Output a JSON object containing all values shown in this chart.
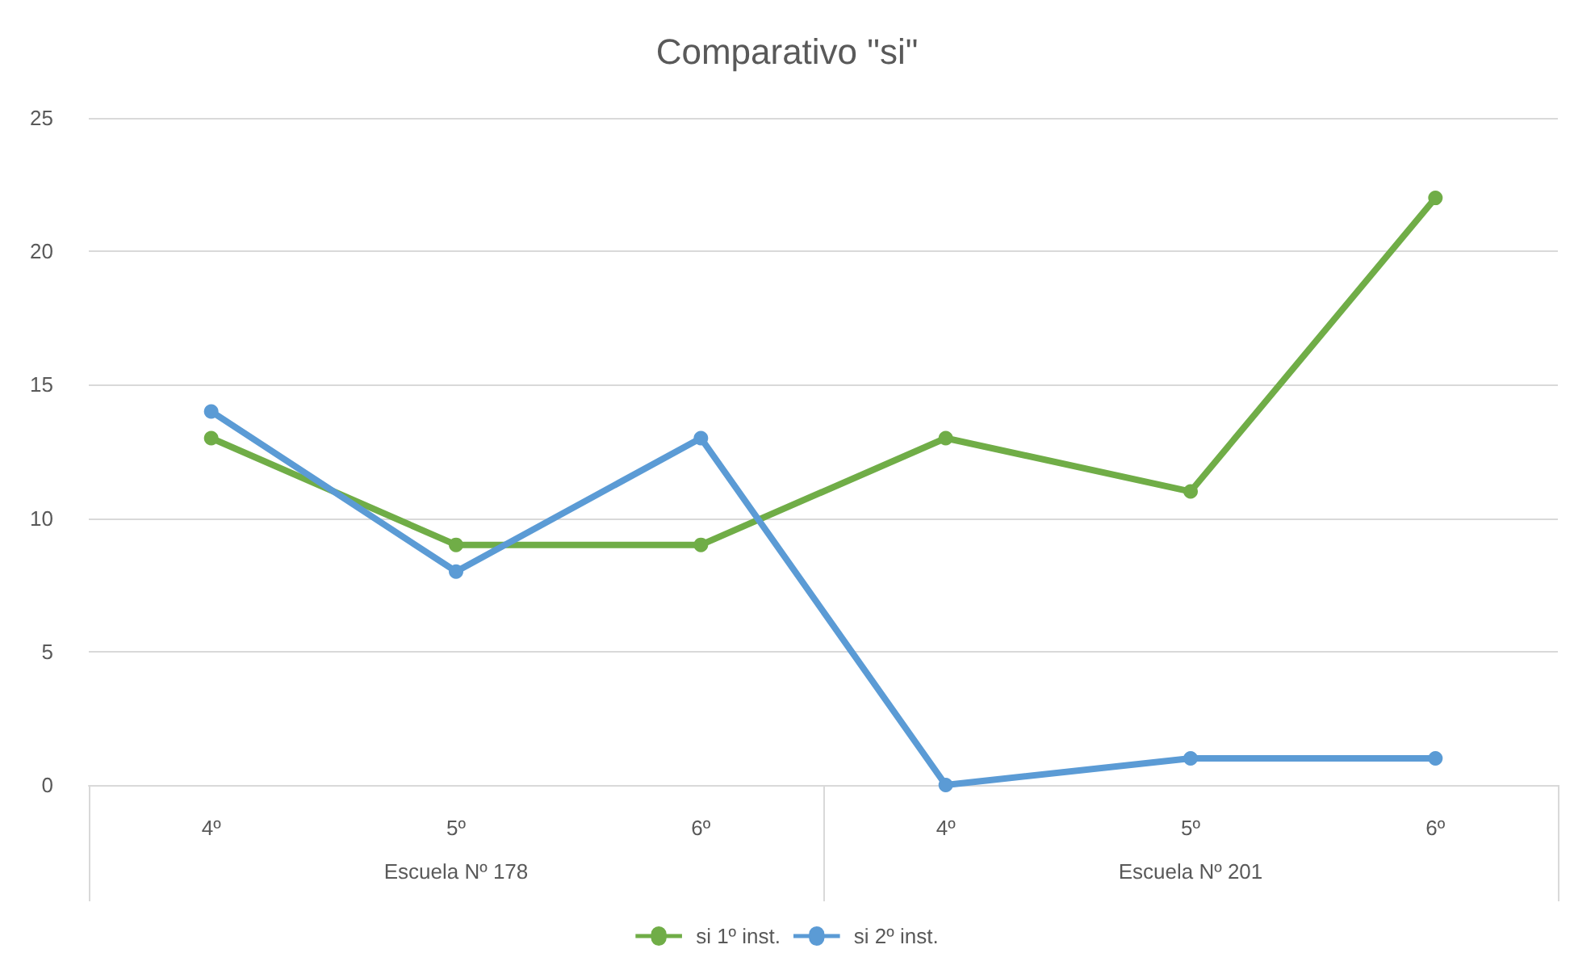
{
  "chart_data": {
    "type": "line",
    "title": "Comparativo \"si\"",
    "categories": [
      "4º",
      "5º",
      "6º",
      "4º",
      "5º",
      "6º"
    ],
    "annotations": [
      "Escuela Nº 178",
      "Escuela Nº 201"
    ],
    "series": [
      {
        "name": "si 1º inst.",
        "color": "#70ad47",
        "values": [
          13,
          9,
          9,
          13,
          11,
          22
        ]
      },
      {
        "name": "si 2º inst.",
        "color": "#5b9bd5",
        "values": [
          14,
          8,
          13,
          0,
          1,
          1
        ]
      }
    ],
    "ylim": [
      0,
      25
    ],
    "yticks": [
      0,
      5,
      10,
      15,
      20,
      25
    ],
    "grid": "y",
    "legend": "bottom",
    "marker": "circle",
    "line_style": "solid"
  }
}
